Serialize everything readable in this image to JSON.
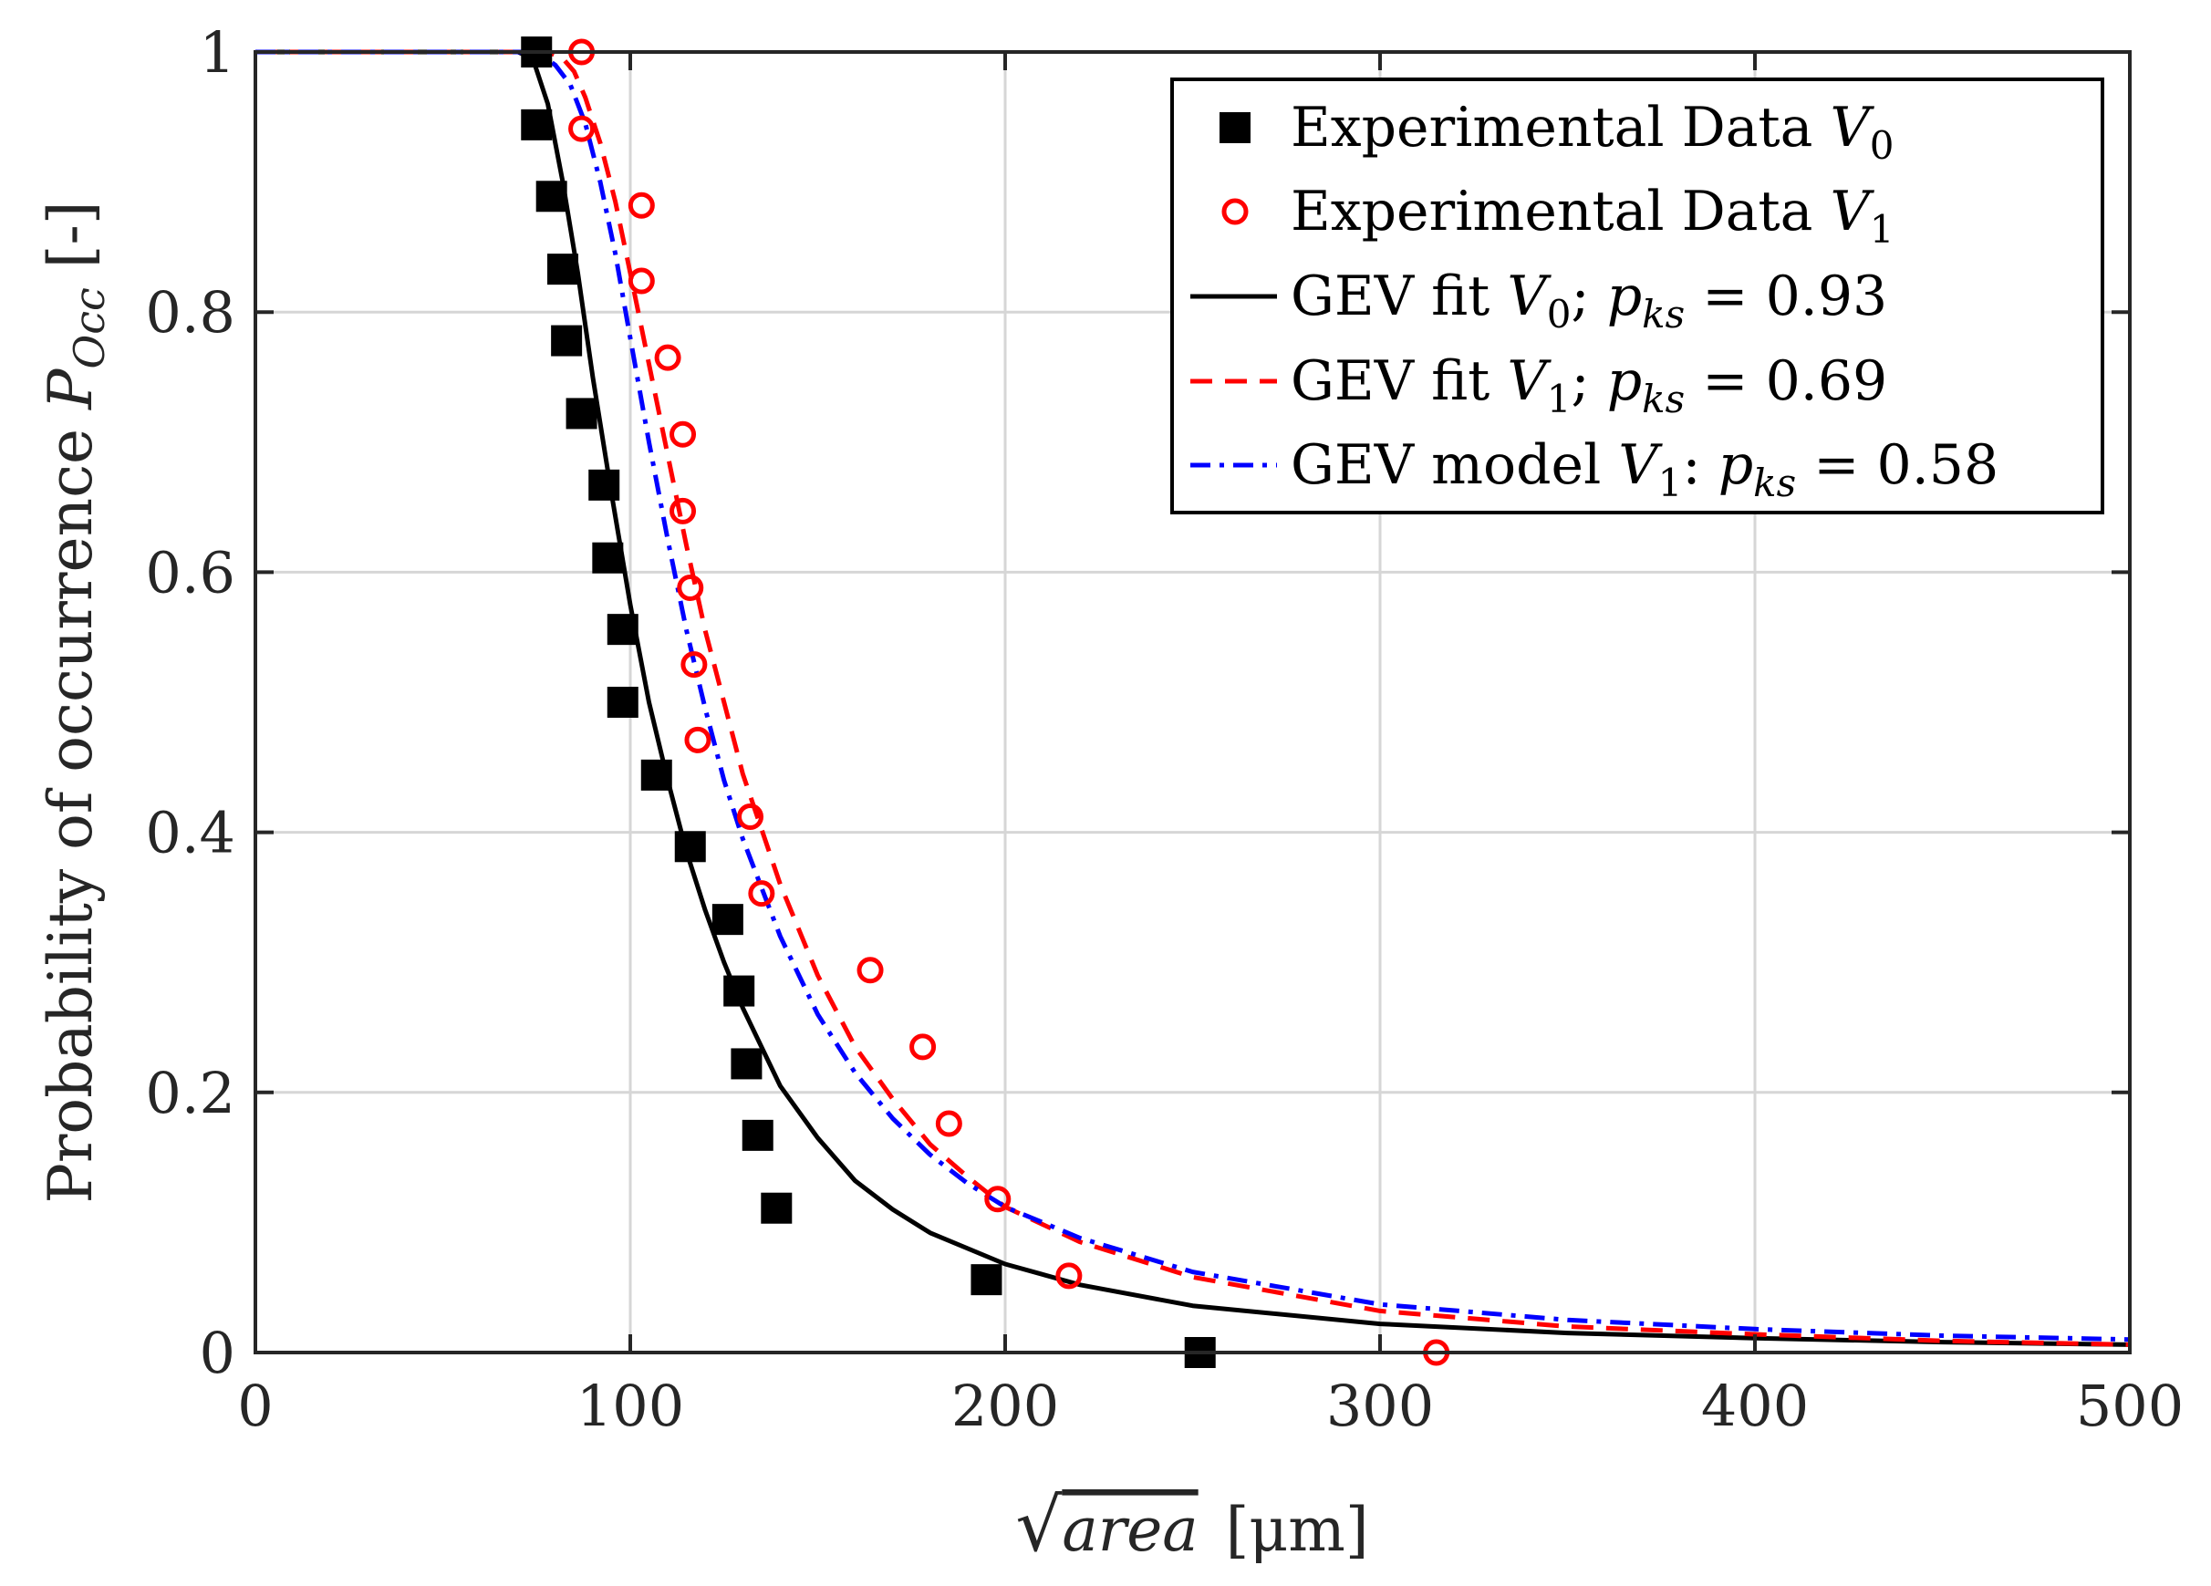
{
  "chart_data": {
    "type": "scatter",
    "xlabel": "√area [μm]",
    "xlabel_parts": {
      "root": "√",
      "var": "area",
      "unit": "[μm]"
    },
    "ylabel": "Probability of occurrence P_Occ [-]",
    "ylabel_parts": {
      "text": "Probability of occurrence ",
      "sym": "P",
      "sub": "Occ",
      "unit": " [-]"
    },
    "xlim": [
      0,
      500
    ],
    "ylim": [
      0,
      1
    ],
    "xticks": [
      0,
      100,
      200,
      300,
      400,
      500
    ],
    "xtick_labels": [
      "0",
      "100",
      "200",
      "300",
      "400",
      "500"
    ],
    "yticks": [
      0,
      0.2,
      0.4,
      0.6,
      0.8,
      1
    ],
    "ytick_labels": [
      "0",
      "0.2",
      "0.4",
      "0.6",
      "0.8",
      "1"
    ],
    "grid": true,
    "legend_position": "top-right",
    "series": [
      {
        "name": "Experimental Data V0",
        "label": {
          "text": "Experimental Data ",
          "sym": "V",
          "sub": "0",
          "rest": ""
        },
        "kind": "marker-square",
        "color": "#000000",
        "x": [
          75,
          75,
          79,
          82,
          83,
          87,
          93,
          94,
          98,
          98,
          107,
          116,
          126,
          129,
          131,
          134,
          139,
          195,
          252
        ],
        "y": [
          1.0,
          0.944,
          0.889,
          0.833,
          0.778,
          0.722,
          0.667,
          0.611,
          0.556,
          0.5,
          0.444,
          0.389,
          0.333,
          0.278,
          0.222,
          0.167,
          0.111,
          0.056,
          0.0
        ]
      },
      {
        "name": "Experimental Data V1",
        "label": {
          "text": "Experimental Data ",
          "sym": "V",
          "sub": "1",
          "rest": ""
        },
        "kind": "marker-circle",
        "color": "#ff0000",
        "x": [
          87,
          87,
          103,
          103,
          110,
          114,
          114,
          116,
          117,
          118,
          132,
          135,
          164,
          178,
          185,
          198,
          217,
          315
        ],
        "y": [
          1.0,
          0.941,
          0.882,
          0.824,
          0.765,
          0.706,
          0.647,
          0.588,
          0.529,
          0.471,
          0.412,
          0.353,
          0.294,
          0.235,
          0.176,
          0.118,
          0.059,
          0.0
        ]
      },
      {
        "name": "GEV fit V0; p_ks = 0.93",
        "label": {
          "text": "GEV fit ",
          "sym": "V",
          "sub": "0",
          "rest": "; ",
          "sym2": "p",
          "sub2": "ks",
          "rest2": " = 0.93"
        },
        "kind": "line-solid",
        "color": "#000000",
        "x": [
          0,
          70,
          74,
          78,
          82,
          86,
          90,
          95,
          100,
          105,
          110,
          115,
          120,
          125,
          130,
          140,
          150,
          160,
          170,
          180,
          200,
          220,
          250,
          300,
          350,
          400,
          450,
          500
        ],
        "y": [
          1.0,
          1.0,
          0.995,
          0.96,
          0.9,
          0.83,
          0.75,
          0.66,
          0.575,
          0.5,
          0.44,
          0.385,
          0.34,
          0.3,
          0.265,
          0.205,
          0.165,
          0.132,
          0.11,
          0.092,
          0.068,
          0.052,
          0.036,
          0.022,
          0.015,
          0.011,
          0.008,
          0.006
        ]
      },
      {
        "name": "GEV fit V1; p_ks = 0.69",
        "label": {
          "text": "GEV fit ",
          "sym": "V",
          "sub": "1",
          "rest": "; ",
          "sym2": "p",
          "sub2": "ks",
          "rest2": " = 0.69"
        },
        "kind": "line-dashed",
        "color": "#ff0000",
        "x": [
          0,
          78,
          82,
          85,
          88,
          92,
          96,
          100,
          105,
          110,
          115,
          120,
          125,
          130,
          140,
          150,
          160,
          170,
          180,
          190,
          200,
          220,
          250,
          300,
          350,
          400,
          450,
          500
        ],
        "y": [
          1.0,
          1.0,
          0.995,
          0.985,
          0.965,
          0.93,
          0.885,
          0.83,
          0.76,
          0.69,
          0.62,
          0.555,
          0.5,
          0.445,
          0.36,
          0.29,
          0.235,
          0.195,
          0.16,
          0.135,
          0.112,
          0.085,
          0.058,
          0.032,
          0.02,
          0.014,
          0.009,
          0.006
        ]
      },
      {
        "name": "GEV model V1: p_ks = 0.58",
        "label": {
          "text": "GEV model ",
          "sym": "V",
          "sub": "1",
          "rest": ": ",
          "sym2": "p",
          "sub2": "ks",
          "rest2": " = 0.58"
        },
        "kind": "line-dashdot",
        "color": "#0000ff",
        "x": [
          0,
          75,
          80,
          84,
          88,
          92,
          96,
          100,
          105,
          110,
          115,
          120,
          125,
          130,
          140,
          150,
          160,
          170,
          180,
          190,
          200,
          220,
          250,
          300,
          350,
          400,
          450,
          500
        ],
        "y": [
          1.0,
          1.0,
          0.99,
          0.975,
          0.945,
          0.9,
          0.845,
          0.78,
          0.7,
          0.625,
          0.555,
          0.495,
          0.44,
          0.395,
          0.32,
          0.26,
          0.215,
          0.18,
          0.152,
          0.13,
          0.112,
          0.088,
          0.062,
          0.037,
          0.025,
          0.018,
          0.013,
          0.01
        ]
      }
    ]
  }
}
